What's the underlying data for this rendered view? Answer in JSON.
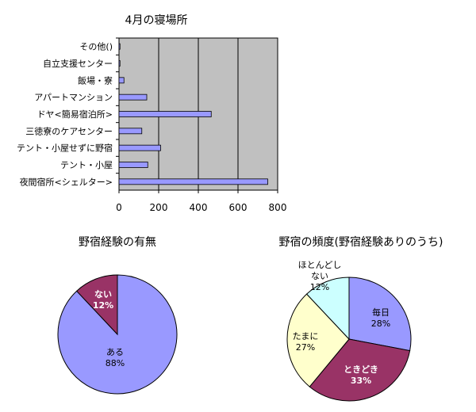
{
  "chart_data": [
    {
      "type": "bar",
      "orientation": "horizontal",
      "title": "4月の寝場所",
      "categories": [
        "その他()",
        "自立支援センター",
        "飯場・寮",
        "アパートマンション",
        "ドヤ<簡易宿泊所>",
        "三徳寮のケアセンター",
        "テント・小屋せずに野宿",
        "テント・小屋",
        "夜間宿所<シェルター>"
      ],
      "values": [
        5,
        5,
        25,
        140,
        465,
        115,
        210,
        145,
        750
      ],
      "xlim": [
        0,
        800
      ],
      "xticks": [
        "0",
        "200",
        "400",
        "600",
        "800"
      ],
      "grid": true,
      "colors": {
        "bar": "#9999ff",
        "plot_bg": "#c0c0c0"
      }
    },
    {
      "type": "pie",
      "title": "野宿経験の有無",
      "slices": [
        {
          "label": "ある",
          "value": 88,
          "pct_label": "88%",
          "color": "#9999ff",
          "text_color": "#000000"
        },
        {
          "label": "ない",
          "value": 12,
          "pct_label": "12%",
          "color": "#993366",
          "text_color": "#ffffff"
        }
      ]
    },
    {
      "type": "pie",
      "title": "野宿の頻度(野宿経験ありのうち)",
      "slices": [
        {
          "label": "毎日",
          "value": 28,
          "pct_label": "28%",
          "color": "#9999ff",
          "text_color": "#000000"
        },
        {
          "label": "ときどき",
          "value": 33,
          "pct_label": "33%",
          "color": "#993366",
          "text_color": "#ffffff"
        },
        {
          "label": "たまに",
          "value": 27,
          "pct_label": "27%",
          "color": "#ffffcc",
          "text_color": "#000000"
        },
        {
          "label": "ほとんどしない",
          "label_lines": [
            "ほとんどし",
            "ない"
          ],
          "value": 12,
          "pct_label": "12%",
          "color": "#ccffff",
          "text_color": "#000000"
        }
      ]
    }
  ]
}
